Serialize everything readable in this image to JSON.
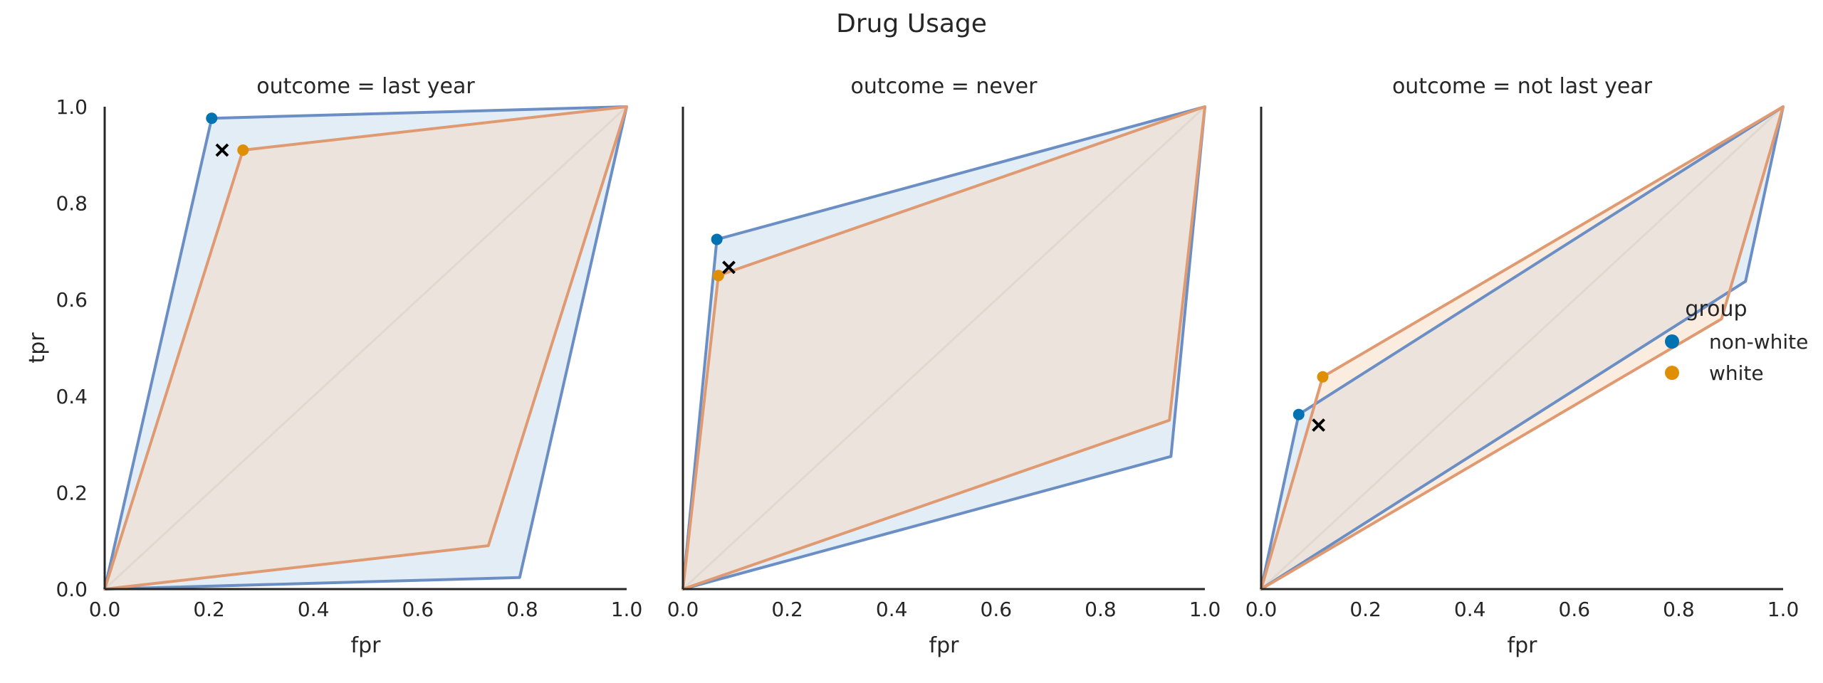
{
  "title": "Drug Usage",
  "colors": {
    "non-white": "#0173b2",
    "white": "#de8f05",
    "non-white-line": "#6b8fc4",
    "white-line": "#e09a72",
    "non-white-fill": "#c8dced",
    "white-fill": "#f5dcc2",
    "diagonal": "#d0d0d0",
    "axis": "#262626"
  },
  "legend": {
    "title": "group",
    "entries": [
      {
        "key": "non-white",
        "label": "non-white"
      },
      {
        "key": "white",
        "label": "white"
      }
    ]
  },
  "chart_data": [
    {
      "type": "scatter",
      "panel_title": "outcome = last year",
      "xlabel": "fpr",
      "ylabel": "tpr",
      "xlim": [
        0,
        1
      ],
      "ylim": [
        0,
        1
      ],
      "xticks": [
        "0.0",
        "0.2",
        "0.4",
        "0.6",
        "0.8",
        "1.0"
      ],
      "yticks": [
        "0.0",
        "0.2",
        "0.4",
        "0.6",
        "0.8",
        "1.0"
      ],
      "series": [
        {
          "name": "non-white",
          "point": [
            0.205,
            0.976
          ],
          "hull": [
            [
              0,
              0
            ],
            [
              0.205,
              0.976
            ],
            [
              1,
              1
            ],
            [
              0.795,
              0.024
            ]
          ]
        },
        {
          "name": "white",
          "point": [
            0.265,
            0.91
          ],
          "hull": [
            [
              0,
              0
            ],
            [
              0.265,
              0.91
            ],
            [
              1,
              1
            ],
            [
              0.735,
              0.09
            ]
          ]
        }
      ],
      "marker_x": [
        0.225,
        0.91
      ]
    },
    {
      "type": "scatter",
      "panel_title": "outcome = never",
      "xlabel": "fpr",
      "ylabel": "",
      "xlim": [
        0,
        1
      ],
      "ylim": [
        0,
        1
      ],
      "xticks": [
        "0.0",
        "0.2",
        "0.4",
        "0.6",
        "0.8",
        "1.0"
      ],
      "yticks": [],
      "series": [
        {
          "name": "non-white",
          "point": [
            0.065,
            0.725
          ],
          "hull": [
            [
              0,
              0
            ],
            [
              0.065,
              0.725
            ],
            [
              1,
              1
            ],
            [
              0.935,
              0.275
            ]
          ]
        },
        {
          "name": "white",
          "point": [
            0.068,
            0.65
          ],
          "hull": [
            [
              0,
              0
            ],
            [
              0.068,
              0.65
            ],
            [
              1,
              1
            ],
            [
              0.932,
              0.35
            ]
          ]
        }
      ],
      "marker_x": [
        0.088,
        0.667
      ]
    },
    {
      "type": "scatter",
      "panel_title": "outcome = not last year",
      "xlabel": "fpr",
      "ylabel": "",
      "xlim": [
        0,
        1
      ],
      "ylim": [
        0,
        1
      ],
      "xticks": [
        "0.0",
        "0.2",
        "0.4",
        "0.6",
        "0.8",
        "1.0"
      ],
      "yticks": [],
      "series": [
        {
          "name": "non-white",
          "point": [
            0.072,
            0.362
          ],
          "hull": [
            [
              0,
              0
            ],
            [
              0.072,
              0.362
            ],
            [
              1,
              1
            ],
            [
              0.928,
              0.638
            ]
          ]
        },
        {
          "name": "white",
          "point": [
            0.118,
            0.44
          ],
          "hull": [
            [
              0,
              0
            ],
            [
              0.118,
              0.44
            ],
            [
              1,
              1
            ],
            [
              0.882,
              0.56
            ]
          ]
        }
      ],
      "marker_x": [
        0.11,
        0.34
      ]
    }
  ]
}
